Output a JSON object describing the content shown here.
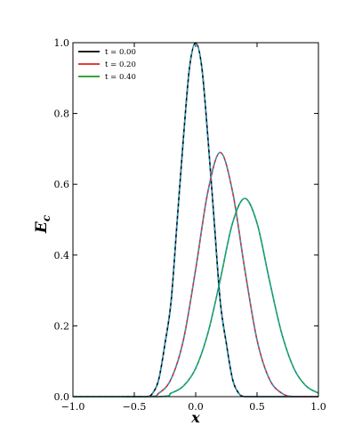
{
  "chart_data": {
    "type": "line",
    "title": "",
    "xlabel": "x",
    "ylabel_main": "E",
    "ylabel_sub": "c",
    "xlim": [
      -1.0,
      1.0
    ],
    "ylim": [
      0.0,
      1.0
    ],
    "grid": false,
    "legend_placement": "top-left",
    "x_ticks": [
      {
        "value": -1.0,
        "label": "−1.0"
      },
      {
        "value": -0.5,
        "label": "−0.5"
      },
      {
        "value": 0.0,
        "label": "0.0"
      },
      {
        "value": 0.5,
        "label": "0.5"
      },
      {
        "value": 1.0,
        "label": "1.0"
      }
    ],
    "y_ticks": [
      {
        "value": 0.0,
        "label": "0.0"
      },
      {
        "value": 0.2,
        "label": "0.2"
      },
      {
        "value": 0.4,
        "label": "0.4"
      },
      {
        "value": 0.6,
        "label": "0.6"
      },
      {
        "value": 0.8,
        "label": "0.8"
      },
      {
        "value": 1.0,
        "label": "1.0"
      }
    ],
    "reference_curve": {
      "style": "dashed",
      "color": "#1f9fd0"
    },
    "series": [
      {
        "name": "t = 0.00",
        "color": "#000000",
        "x": [
          -0.6,
          -0.5,
          -0.4,
          -0.35,
          -0.3,
          -0.25,
          -0.2,
          -0.15,
          -0.1,
          -0.05,
          0.0,
          0.05,
          0.1,
          0.15,
          0.2,
          0.25,
          0.3,
          0.35,
          0.4,
          0.5,
          0.6,
          1.0
        ],
        "y": [
          0.0,
          0.0,
          0.0,
          0.01,
          0.05,
          0.15,
          0.27,
          0.5,
          0.73,
          0.93,
          1.0,
          0.93,
          0.73,
          0.5,
          0.27,
          0.15,
          0.05,
          0.01,
          0.0,
          0.0,
          0.0,
          0.0
        ]
      },
      {
        "name": "t = 0.20",
        "color": "#dd2020",
        "x": [
          -1.0,
          -0.4,
          -0.3,
          -0.2,
          -0.1,
          0.0,
          0.1,
          0.2,
          0.3,
          0.4,
          0.5,
          0.6,
          0.7,
          0.8,
          1.0
        ],
        "y": [
          0.0,
          0.0,
          0.01,
          0.05,
          0.16,
          0.36,
          0.58,
          0.69,
          0.58,
          0.36,
          0.16,
          0.05,
          0.01,
          0.0,
          0.0
        ]
      },
      {
        "name": "t = 0.40",
        "color": "#1a9a1a",
        "x": [
          -1.0,
          -0.3,
          -0.2,
          -0.1,
          0.0,
          0.1,
          0.2,
          0.3,
          0.4,
          0.5,
          0.6,
          0.7,
          0.8,
          0.9,
          1.0
        ],
        "y": [
          0.0,
          0.0,
          0.01,
          0.03,
          0.08,
          0.18,
          0.33,
          0.49,
          0.56,
          0.49,
          0.33,
          0.18,
          0.08,
          0.03,
          0.01
        ]
      }
    ]
  }
}
